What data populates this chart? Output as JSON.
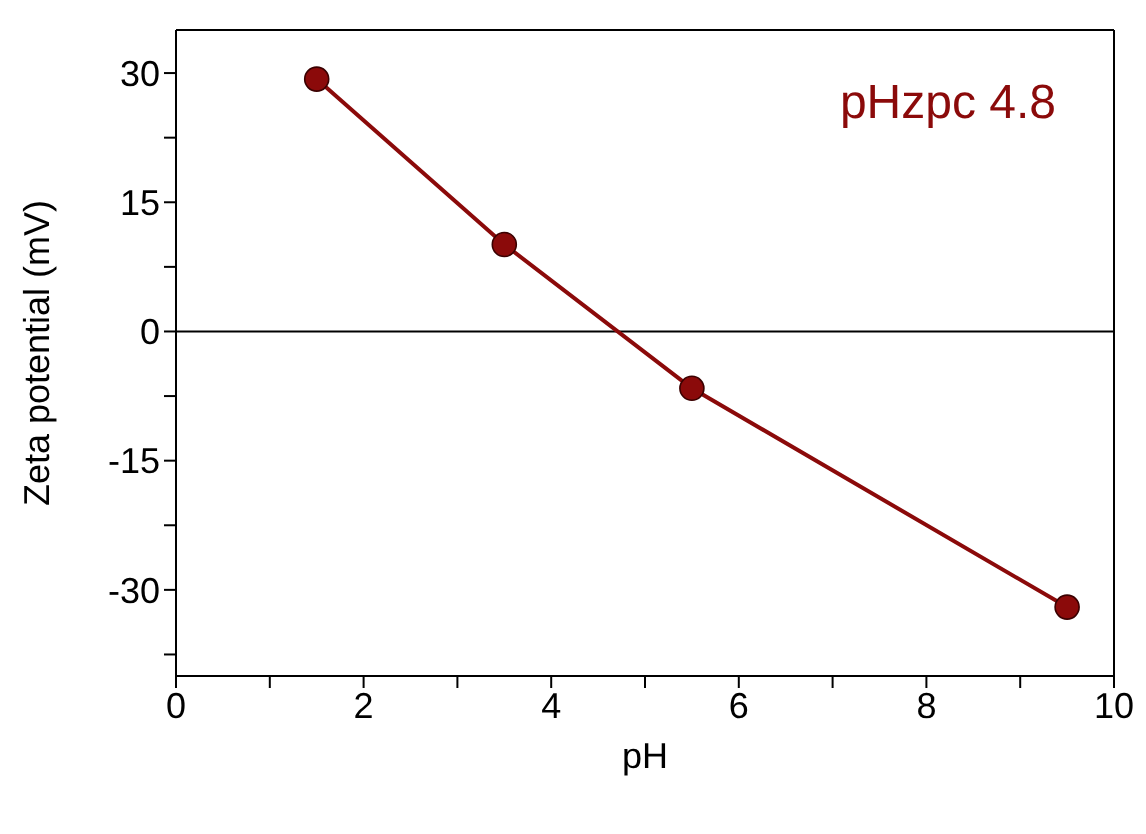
{
  "chart_data": {
    "type": "line",
    "xlabel": "pH",
    "ylabel": "Zeta potential (mV)",
    "annotations": [
      "pHzpc 4.8"
    ],
    "x": [
      1.5,
      3.5,
      5.5,
      9.5
    ],
    "series": [
      {
        "color": "#8b0a0a",
        "values": [
          29.3,
          10.1,
          -6.6,
          -32
        ]
      }
    ],
    "xlim": [
      0,
      10
    ],
    "xticks": [
      0,
      {
        "value": 1,
        "label": null
      },
      2,
      {
        "value": 3,
        "label": null
      },
      4,
      {
        "value": 5,
        "label": null
      },
      6,
      {
        "value": 7,
        "label": null
      },
      8,
      {
        "value": 9,
        "label": null
      },
      10
    ],
    "ylim": [
      -40,
      35
    ],
    "yticks": [
      {
        "value": -37.5,
        "label": null
      },
      -30,
      {
        "value": -22.5,
        "label": null
      },
      -15,
      {
        "value": -7.5,
        "label": null
      },
      0,
      {
        "value": 7.5,
        "label": null
      },
      15,
      {
        "value": 22.5,
        "label": null
      },
      30
    ],
    "ref_lines": [
      {
        "axis": "y",
        "value": 0,
        "color": "#000000"
      }
    ],
    "marker": "circle",
    "line_style": "solid"
  }
}
